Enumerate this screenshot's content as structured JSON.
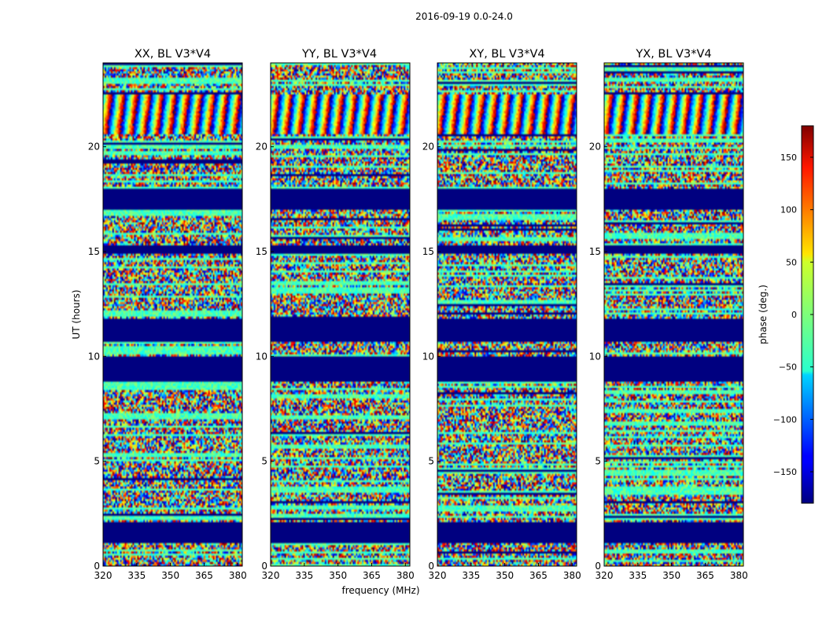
{
  "suptitle": "2016-09-19 0.0-24.0",
  "chart_data": {
    "type": "heatmap",
    "x_unit": "frequency (MHz)",
    "xlabel": "frequency (MHz)",
    "ylabel": "UT (hours)",
    "xlim": [
      320,
      382
    ],
    "ylim": [
      0,
      24
    ],
    "xticks": [
      320,
      335,
      350,
      365,
      380
    ],
    "xtick_labels": [
      "320",
      "335",
      "350",
      "365",
      "380"
    ],
    "yticks": [
      0,
      5,
      10,
      15,
      20
    ],
    "ytick_labels": [
      "0",
      "5",
      "10",
      "15",
      "20"
    ],
    "panels": [
      {
        "title": "XX, BL V3*V4",
        "product": "XX"
      },
      {
        "title": "YY, BL V3*V4",
        "product": "YY"
      },
      {
        "title": "XY, BL V3*V4",
        "product": "XY"
      },
      {
        "title": "YX, BL V3*V4",
        "product": "YX"
      }
    ],
    "flagged_ut_ranges": [
      [
        1.1,
        2.1
      ],
      [
        8.8,
        10.0
      ],
      [
        10.75,
        11.85
      ],
      [
        17.0,
        18.0
      ],
      [
        14.95,
        15.35
      ]
    ],
    "fringe_ut_ranges": [
      [
        20.6,
        22.5
      ]
    ],
    "colorbar": {
      "label": "phase (deg.)",
      "range": [
        -180,
        180
      ],
      "ticks": [
        150,
        100,
        50,
        0,
        -50,
        -100,
        -150
      ],
      "tick_labels": [
        "150",
        "100",
        "50",
        "0",
        "−50",
        "−100",
        "−150"
      ],
      "colormap": "jet"
    }
  },
  "colors": {
    "flagged": "#00007f",
    "frame": "#000000"
  }
}
